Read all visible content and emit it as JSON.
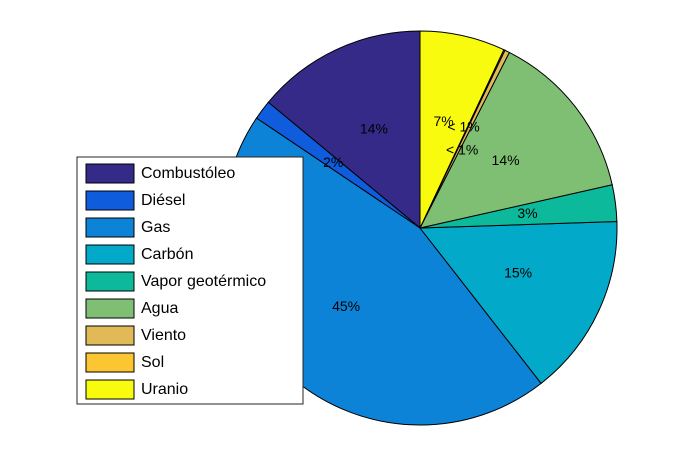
{
  "chart_data": {
    "type": "pie",
    "title": "",
    "legend_position": "left",
    "slices": [
      {
        "name": "Combustóleo",
        "value": 14,
        "label": "14%",
        "color": "#352a87"
      },
      {
        "name": "Diésel",
        "value": 1.6,
        "label": "2%",
        "color": "#0f5cdd"
      },
      {
        "name": "Gas",
        "value": 45,
        "label": "45%",
        "color": "#0d83d7"
      },
      {
        "name": "Carbón",
        "value": 15,
        "label": "15%",
        "color": "#02a9c9"
      },
      {
        "name": "Vapor geotérmico",
        "value": 3,
        "label": "3%",
        "color": "#0cb99a"
      },
      {
        "name": "Agua",
        "value": 14,
        "label": "14%",
        "color": "#7fbf73"
      },
      {
        "name": "Viento",
        "value": 0.4,
        "label": "< 1%",
        "color": "#e2b957"
      },
      {
        "name": "Sol",
        "value": 0.1,
        "label": "< 1%",
        "color": "#fcc632"
      },
      {
        "name": "Uranio",
        "value": 7,
        "label": "7%",
        "color": "#f9fb0e"
      }
    ]
  }
}
